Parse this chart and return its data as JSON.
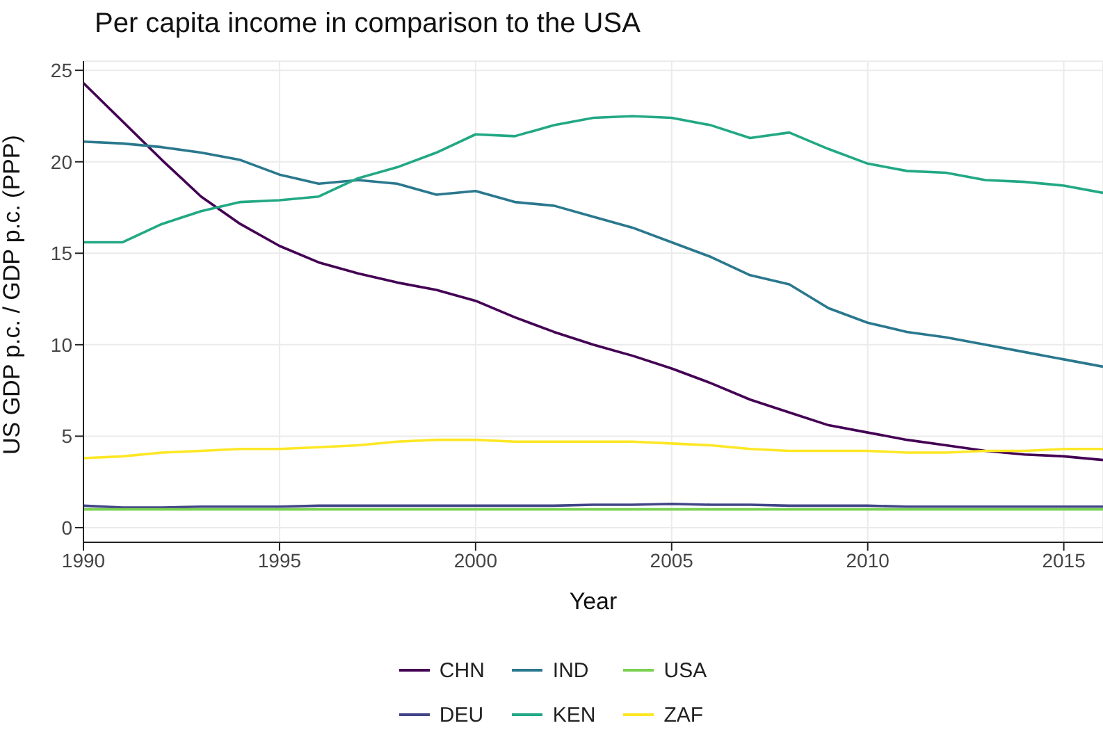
{
  "chart_data": {
    "type": "line",
    "title": "Per capita income in comparison to the USA",
    "xlabel": "Year",
    "ylabel": "US GDP p.c. / GDP p.c. (PPP)",
    "x": [
      1990,
      1991,
      1992,
      1993,
      1994,
      1995,
      1996,
      1997,
      1998,
      1999,
      2000,
      2001,
      2002,
      2003,
      2004,
      2005,
      2006,
      2007,
      2008,
      2009,
      2010,
      2011,
      2012,
      2013,
      2014,
      2015,
      2016
    ],
    "series": [
      {
        "name": "CHN",
        "color": "#440154",
        "values": [
          24.3,
          22.2,
          20.1,
          18.1,
          16.6,
          15.4,
          14.5,
          13.9,
          13.4,
          13.0,
          12.4,
          11.5,
          10.7,
          10.0,
          9.4,
          8.7,
          7.9,
          7.0,
          6.3,
          5.6,
          5.2,
          4.8,
          4.5,
          4.2,
          4.0,
          3.9,
          3.7
        ]
      },
      {
        "name": "DEU",
        "color": "#414487",
        "values": [
          1.2,
          1.1,
          1.1,
          1.15,
          1.15,
          1.15,
          1.2,
          1.2,
          1.2,
          1.2,
          1.2,
          1.2,
          1.2,
          1.25,
          1.25,
          1.3,
          1.25,
          1.25,
          1.2,
          1.2,
          1.2,
          1.15,
          1.15,
          1.15,
          1.15,
          1.15,
          1.15
        ]
      },
      {
        "name": "IND",
        "color": "#2a788e",
        "values": [
          21.1,
          21.0,
          20.8,
          20.5,
          20.1,
          19.3,
          18.8,
          19.0,
          18.8,
          18.2,
          18.4,
          17.8,
          17.6,
          17.0,
          16.4,
          15.6,
          14.8,
          13.8,
          13.3,
          12.0,
          11.2,
          10.7,
          10.4,
          10.0,
          9.6,
          9.2,
          8.8
        ]
      },
      {
        "name": "KEN",
        "color": "#22a884",
        "values": [
          15.6,
          15.6,
          16.6,
          17.3,
          17.8,
          17.9,
          18.1,
          19.1,
          19.7,
          20.5,
          21.5,
          21.4,
          22.0,
          22.4,
          22.5,
          22.4,
          22.0,
          21.3,
          21.6,
          20.7,
          19.9,
          19.5,
          19.4,
          19.0,
          18.9,
          18.7,
          18.3
        ]
      },
      {
        "name": "USA",
        "color": "#7ad151",
        "values": [
          1,
          1,
          1,
          1,
          1,
          1,
          1,
          1,
          1,
          1,
          1,
          1,
          1,
          1,
          1,
          1,
          1,
          1,
          1,
          1,
          1,
          1,
          1,
          1,
          1,
          1,
          1
        ]
      },
      {
        "name": "ZAF",
        "color": "#fde725",
        "values": [
          3.8,
          3.9,
          4.1,
          4.2,
          4.3,
          4.3,
          4.4,
          4.5,
          4.7,
          4.8,
          4.8,
          4.7,
          4.7,
          4.7,
          4.7,
          4.6,
          4.5,
          4.3,
          4.2,
          4.2,
          4.2,
          4.1,
          4.1,
          4.2,
          4.2,
          4.3,
          4.3
        ]
      }
    ],
    "xlim": [
      1990,
      2016
    ],
    "xticks": [
      1990,
      1995,
      2000,
      2005,
      2010,
      2015
    ],
    "ylim": [
      -0.8,
      25.5
    ],
    "yticks": [
      0,
      5,
      10,
      15,
      20,
      25
    ],
    "grid": true,
    "legend": "bottom",
    "marker": "none",
    "line_style": "solid"
  }
}
